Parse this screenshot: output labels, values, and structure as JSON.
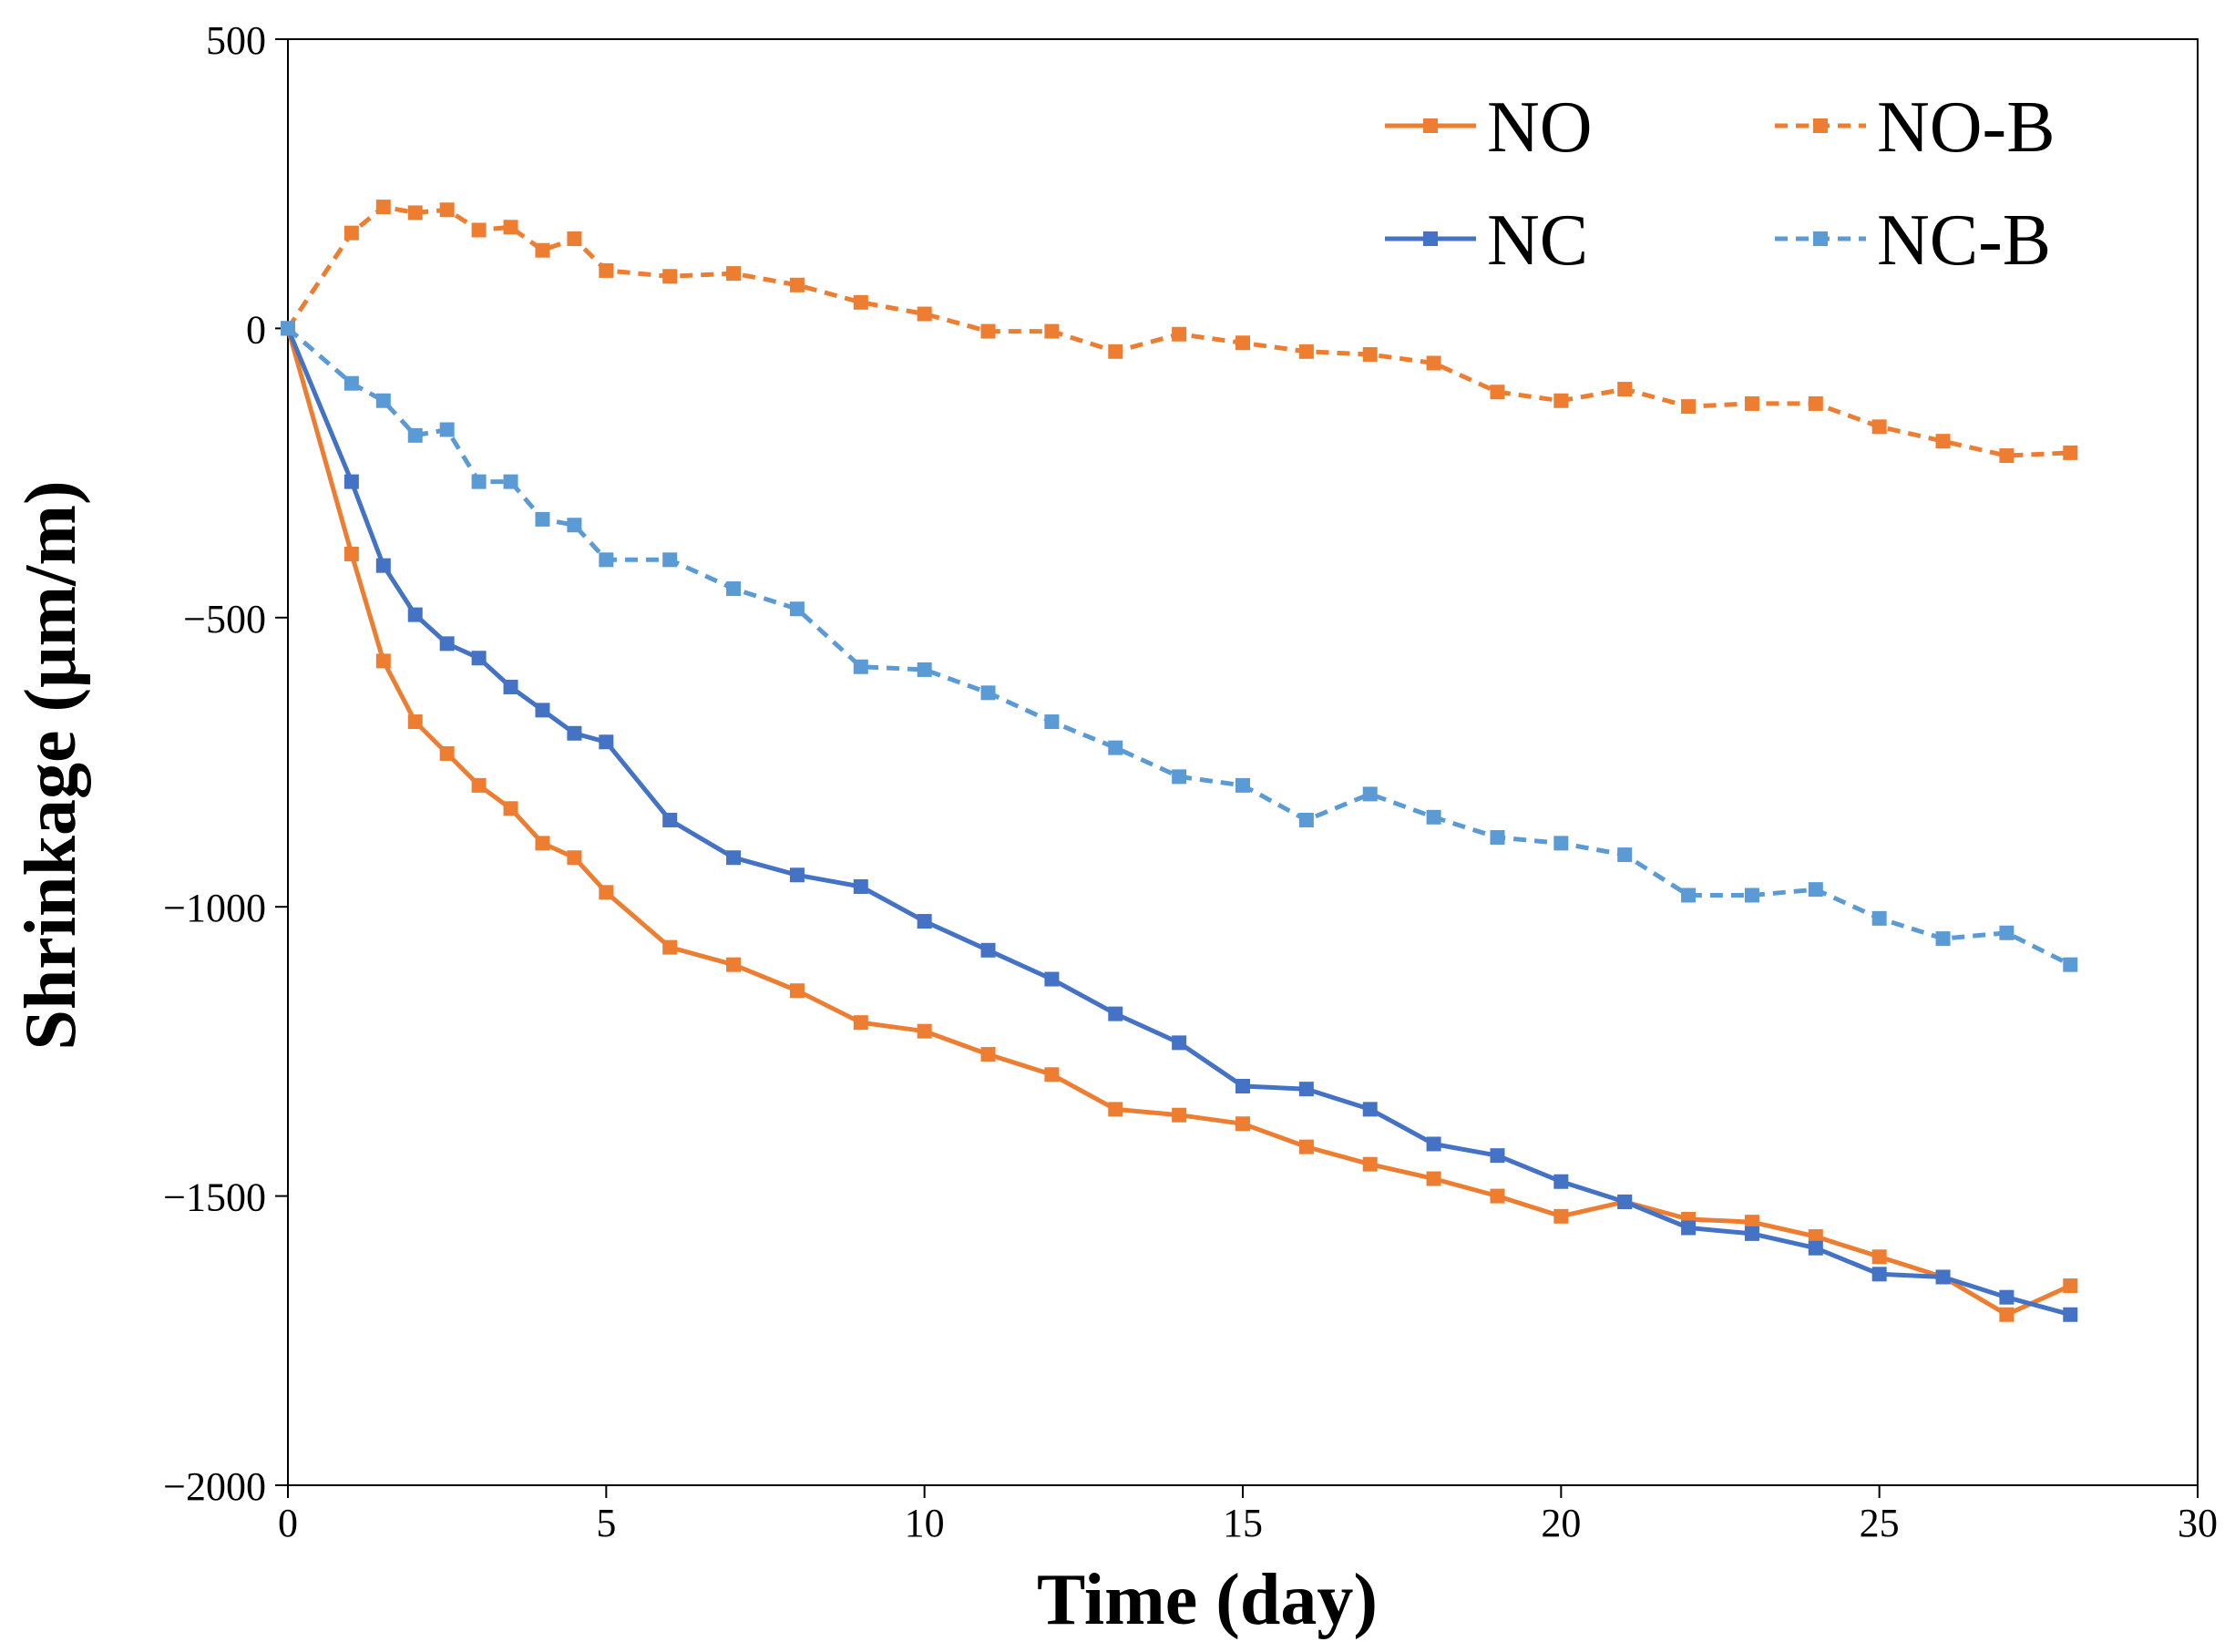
{
  "chart_data": {
    "type": "line",
    "title": "",
    "xlabel": "Time (day)",
    "ylabel": "Shrinkage (μm/m)",
    "xlim": [
      0,
      30
    ],
    "ylim": [
      -2000,
      500
    ],
    "xticks": [
      0,
      5,
      10,
      15,
      20,
      25,
      30
    ],
    "yticks": [
      500,
      0,
      -500,
      -1000,
      -1500,
      -2000
    ],
    "xtick_labels": [
      "0",
      "5",
      "10",
      "15",
      "20",
      "25",
      "30"
    ],
    "ytick_labels": [
      "500",
      "0",
      "−500",
      "−1000",
      "−1500",
      "−2000"
    ],
    "grid": false,
    "legend_position": "top-right",
    "series": [
      {
        "name": "NO",
        "color": "#ED7D31",
        "dashed": false,
        "x": [
          0,
          1,
          1.5,
          2,
          2.5,
          3,
          3.5,
          4,
          4.5,
          5,
          6,
          7,
          8,
          9,
          10,
          11,
          12,
          13,
          14,
          15,
          16,
          17,
          18,
          19,
          20,
          21,
          22,
          23,
          24,
          25,
          26,
          27,
          28
        ],
        "y": [
          0,
          -390,
          -575,
          -680,
          -735,
          -790,
          -830,
          -890,
          -915,
          -975,
          -1070,
          -1100,
          -1145,
          -1200,
          -1215,
          -1255,
          -1290,
          -1350,
          -1360,
          -1375,
          -1415,
          -1445,
          -1470,
          -1500,
          -1535,
          -1510,
          -1540,
          -1545,
          -1570,
          -1605,
          -1640,
          -1705,
          -1655
        ]
      },
      {
        "name": "NO-B",
        "color": "#ED7D31",
        "dashed": true,
        "x": [
          0,
          1,
          1.5,
          2,
          2.5,
          3,
          3.5,
          4,
          4.5,
          5,
          6,
          7,
          8,
          9,
          10,
          11,
          12,
          13,
          14,
          15,
          16,
          17,
          18,
          19,
          20,
          21,
          22,
          23,
          24,
          25,
          26,
          27,
          28
        ],
        "y": [
          0,
          165,
          210,
          200,
          205,
          170,
          175,
          135,
          155,
          100,
          90,
          95,
          75,
          45,
          25,
          -5,
          -5,
          -40,
          -10,
          -25,
          -40,
          -45,
          -60,
          -110,
          -125,
          -105,
          -135,
          -130,
          -130,
          -170,
          -195,
          -220,
          -215
        ]
      },
      {
        "name": "NC",
        "color": "#4472C4",
        "dashed": false,
        "x": [
          0,
          1,
          1.5,
          2,
          2.5,
          3,
          3.5,
          4,
          4.5,
          5,
          6,
          7,
          8,
          9,
          10,
          11,
          12,
          13,
          14,
          15,
          16,
          17,
          18,
          19,
          20,
          21,
          22,
          23,
          24,
          25,
          26,
          27,
          28
        ],
        "y": [
          0,
          -265,
          -410,
          -495,
          -545,
          -570,
          -620,
          -660,
          -700,
          -715,
          -850,
          -915,
          -945,
          -965,
          -1025,
          -1075,
          -1125,
          -1185,
          -1235,
          -1310,
          -1315,
          -1350,
          -1410,
          -1430,
          -1475,
          -1510,
          -1555,
          -1565,
          -1590,
          -1635,
          -1640,
          -1675,
          -1705
        ]
      },
      {
        "name": "NC-B",
        "color": "#5B9BD5",
        "dashed": true,
        "x": [
          0,
          1,
          1.5,
          2,
          2.5,
          3,
          3.5,
          4,
          4.5,
          5,
          6,
          7,
          8,
          9,
          10,
          11,
          12,
          13,
          14,
          15,
          16,
          17,
          18,
          19,
          20,
          21,
          22,
          23,
          24,
          25,
          26,
          27,
          28
        ],
        "y": [
          0,
          -95,
          -125,
          -185,
          -175,
          -265,
          -265,
          -330,
          -340,
          -400,
          -400,
          -450,
          -485,
          -585,
          -590,
          -630,
          -680,
          -725,
          -775,
          -790,
          -850,
          -805,
          -845,
          -880,
          -890,
          -910,
          -980,
          -980,
          -970,
          -1020,
          -1055,
          -1045,
          -1100
        ]
      }
    ]
  }
}
